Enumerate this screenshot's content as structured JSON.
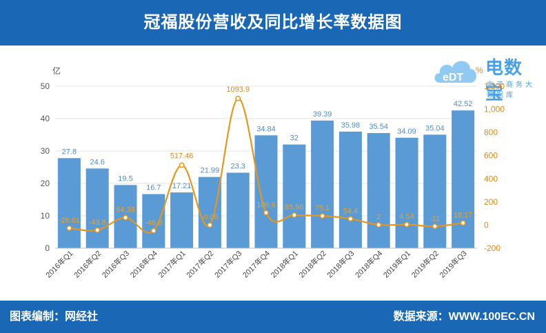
{
  "header": {
    "title": "冠福股份营收及同比增长率数据图"
  },
  "footer": {
    "left": "图表编制：网经社",
    "right": "数据来源：WWW.100EC.CN"
  },
  "logo": {
    "name": "电数宝",
    "subtitle": "电子商务大数据库",
    "bubble_text": "eDT"
  },
  "colors": {
    "bar": "#5b9bd5",
    "line": "#e6961a",
    "header": "#1a67b5",
    "bar_label": "#4f8ccb",
    "line_label": "#f0a020"
  },
  "chart_data": {
    "type": "bar",
    "categories": [
      "2016年Q1",
      "2016年Q2",
      "2016年Q3",
      "2016年Q4",
      "2017年Q1",
      "2017年Q2",
      "2017年Q3",
      "2017年Q4",
      "2018年Q1",
      "2018年Q2",
      "2018年Q3",
      "2018年Q4",
      "2019年Q1",
      "2019年Q2",
      "2019年Q3"
    ],
    "series": [
      {
        "name": "",
        "type": "bar",
        "axis": "left",
        "values": [
          27.8,
          24.6,
          19.5,
          16.7,
          17.21,
          21.99,
          23.3,
          34.84,
          32,
          39.39,
          35.98,
          35.54,
          34.09,
          35.04,
          42.52
        ],
        "labels": [
          "27.8",
          "24.6",
          "19.5",
          "16.7",
          "17.21",
          "21.99",
          "23.3",
          "34.84",
          "32",
          "39.39",
          "35.98",
          "35.54",
          "34.09",
          "35.04",
          "42.52"
        ]
      },
      {
        "name": "",
        "type": "line",
        "axis": "right",
        "values": [
          -26.61,
          -43.8,
          64.38,
          -48.8,
          517.46,
          -0.05,
          1093.9,
          106.6,
          85.96,
          79.1,
          54.4,
          2,
          4.54,
          -11,
          18.17
        ],
        "labels": [
          "-26.61",
          "-43.8",
          "64.38",
          "-48.8",
          "517.46",
          "-0.05",
          "1093.9",
          "106.6",
          "85.96",
          "79.1",
          "54.4",
          "2",
          "4.54",
          "-11",
          "18.17"
        ]
      }
    ],
    "y_left": {
      "unit": "亿",
      "min": 0,
      "max": 50,
      "ticks": [
        "0",
        "10",
        "20",
        "30",
        "40",
        "50"
      ]
    },
    "y_right": {
      "unit": "%",
      "min": -200,
      "max": 1200,
      "ticks": [
        "-200",
        "0",
        "200",
        "400",
        "600",
        "800",
        "1,000",
        "1,200"
      ]
    },
    "grid": true,
    "legend": "none"
  }
}
